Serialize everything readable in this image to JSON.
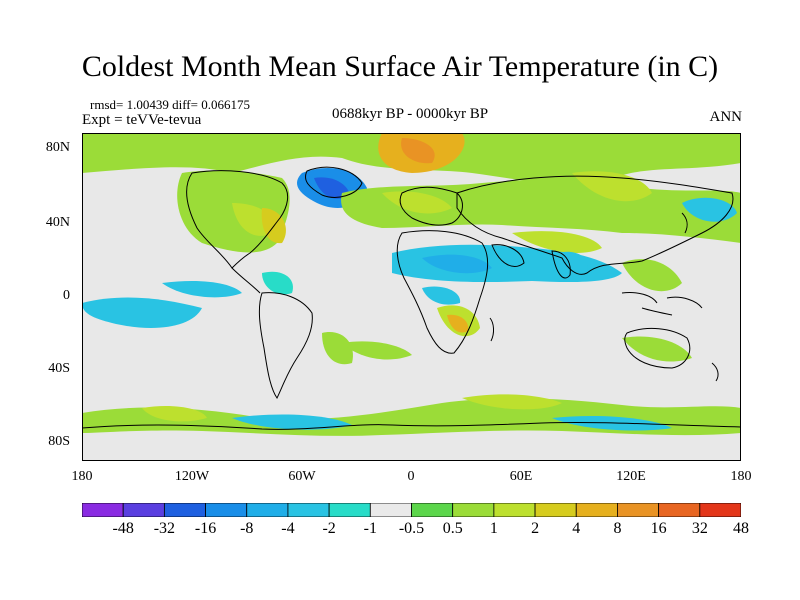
{
  "title": "Coldest Month Mean Surface Air Temperature (in C)",
  "stats_line": "rmsd= 1.00439  diff= 0.066175",
  "experiment_line": "Expt = teVVe-tevua",
  "period_line": "0688kyr BP - 0000kyr BP",
  "season_label": "ANN",
  "map": {
    "projection": "cylindrical equidistant",
    "lon_range": [
      -180,
      180
    ],
    "lat_range": [
      -90,
      90
    ],
    "lat_labels": [
      "80N",
      "40N",
      "0",
      "40S",
      "80S"
    ],
    "lon_labels": [
      "180",
      "120W",
      "60W",
      "0",
      "60E",
      "120E",
      "180"
    ]
  },
  "colorbar": {
    "colors": [
      "#8a2be2",
      "#5a3fe0",
      "#1f60e0",
      "#1a8ee8",
      "#20aee8",
      "#29c3e3",
      "#28dcc8",
      "#eaeaea",
      "#5cd64b",
      "#9bdc38",
      "#bde02e",
      "#d6cc1e",
      "#e6b01e",
      "#e99324",
      "#e86622",
      "#e3361a"
    ],
    "labels": [
      "-48",
      "-32",
      "-16",
      "-8",
      "-4",
      "-2",
      "-1",
      "-0.5",
      "0.5",
      "1",
      "2",
      "4",
      "8",
      "16",
      "32",
      "48"
    ],
    "neutral_color": "#e8e8e8"
  }
}
